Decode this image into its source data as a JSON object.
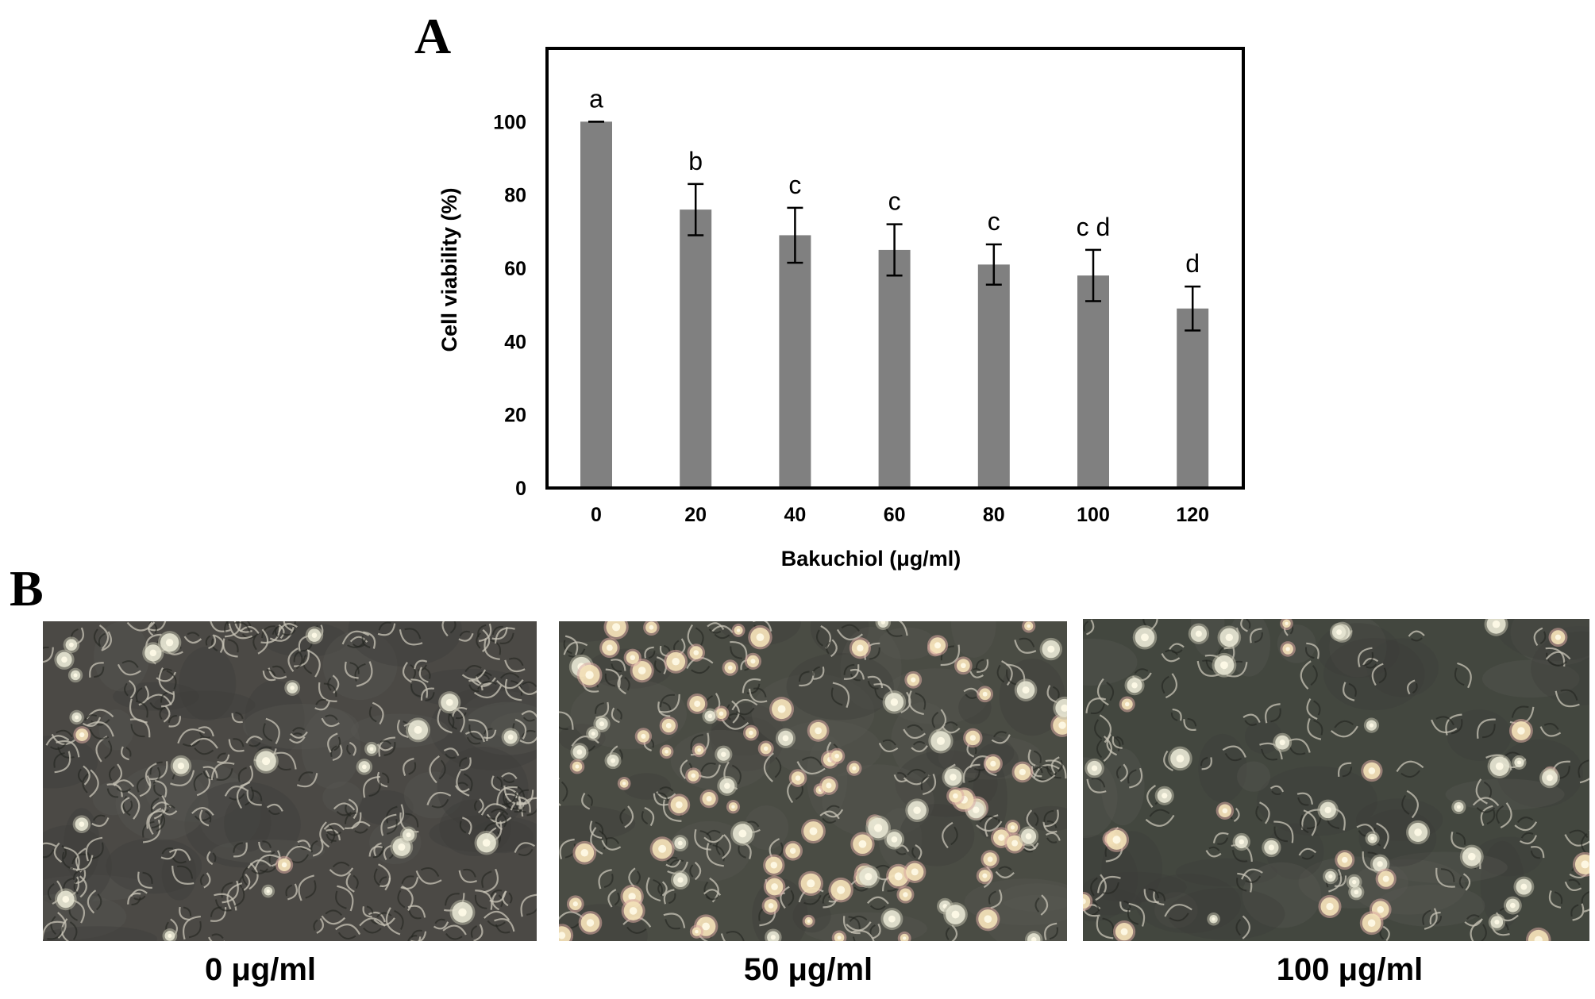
{
  "panels": {
    "a_label": "A",
    "b_label": "B"
  },
  "chart_data": {
    "type": "bar",
    "title": "",
    "xlabel": "Bakuchiol (μg/ml)",
    "ylabel": "Cell viability (%)",
    "categories": [
      "0",
      "20",
      "40",
      "60",
      "80",
      "100",
      "120"
    ],
    "values": [
      100,
      76,
      69,
      65,
      61,
      58,
      49
    ],
    "errors": [
      0,
      7,
      7.5,
      7,
      5.5,
      7,
      6
    ],
    "significance": [
      "a",
      "b",
      "c",
      "c",
      "c",
      "c d",
      "d"
    ],
    "ylim": [
      0,
      120
    ],
    "yticks": [
      0,
      20,
      40,
      60,
      80,
      100
    ],
    "grid": false,
    "legend": "none",
    "bar_color": "#808080"
  },
  "micrographs": [
    {
      "caption": "0 μg/ml",
      "tone": "#4b4945"
    },
    {
      "caption": "50 μg/ml",
      "tone": "#4a4c44"
    },
    {
      "caption": "100 μg/ml",
      "tone": "#43473f"
    }
  ]
}
